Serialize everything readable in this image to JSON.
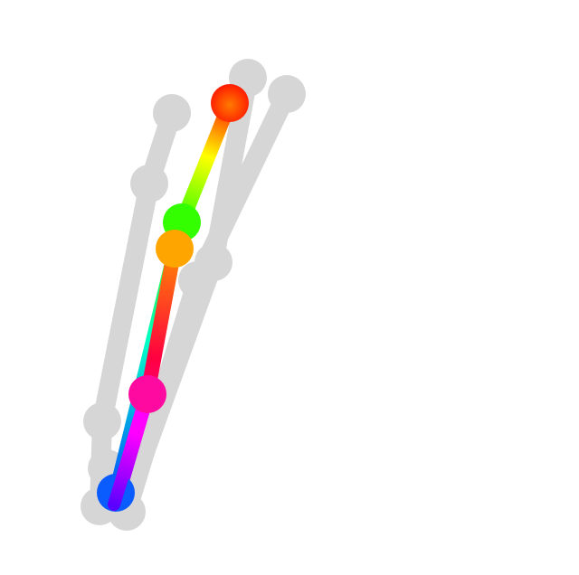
{
  "figure": {
    "description_kind": "pose-skeleton-rendering",
    "background_color": "#ffffff",
    "ghost_color": "#d6d6d6",
    "highlight_limb_colors": {
      "upper_segment_start": "#ff1a00",
      "upper_segment_mid": "#ffff00",
      "upper_segment_end": "#33ff00",
      "lower_segment_start": "#ff8a00",
      "lower_segment_mid": "#ff0040",
      "lower_segment_end": "#ff00ff",
      "left_segment_start": "#33ff00",
      "left_segment_mid": "#00ffc8",
      "left_segment_end": "#0050ff",
      "tail_start": "#ff00ff",
      "tail_end": "#5a00ff"
    },
    "joint_colors": {
      "top_joint": "#ff1a00",
      "upper_mid_joint": "#33ff00",
      "orange_joint": "#ffa500",
      "pink_joint": "#ff0aa0",
      "bottom_joint": "#0a5cff"
    }
  }
}
